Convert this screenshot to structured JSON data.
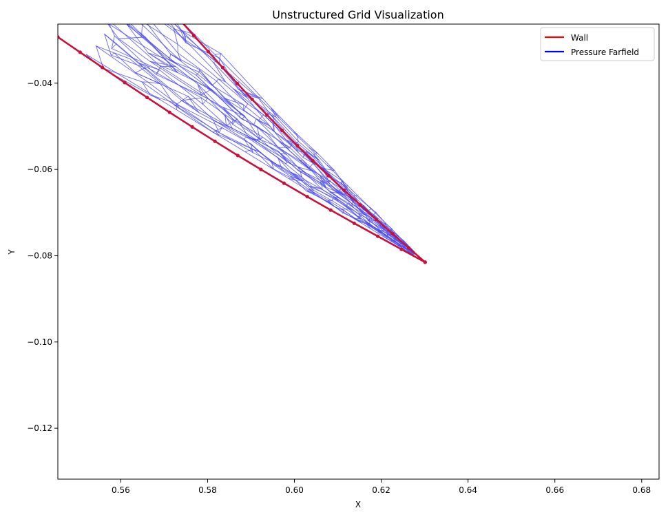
{
  "chart_data": {
    "type": "line",
    "title": "Unstructured Grid Visualization",
    "xlabel": "X",
    "ylabel": "Y",
    "xlim": [
      0.5455,
      0.684
    ],
    "ylim": [
      -0.1318,
      -0.0263
    ],
    "x_ticks": [
      0.56,
      0.58,
      0.6,
      0.62,
      0.64,
      0.66,
      0.68
    ],
    "y_ticks": [
      -0.12,
      -0.1,
      -0.08,
      -0.06,
      -0.04
    ],
    "x_tick_labels": [
      "0.56",
      "0.58",
      "0.60",
      "0.62",
      "0.64",
      "0.66",
      "0.68"
    ],
    "y_tick_labels": [
      "−0.12",
      "−0.10",
      "−0.08",
      "−0.06",
      "−0.04"
    ],
    "grid": false,
    "legend": {
      "placement": "top-right",
      "entries": [
        {
          "label": "Wall",
          "color": "#ff0000"
        },
        {
          "label": "Pressure Farfield",
          "color": "#0000ff"
        }
      ]
    },
    "wall": {
      "color": "#c8103a",
      "point_color": "#c8103a",
      "vertex": [
        0.6301,
        -0.0815
      ],
      "upper_ray_end": [
        0.5735,
        -0.0252
      ],
      "lower_ray_end": [
        0.5455,
        -0.0293
      ]
    },
    "farfield": {
      "color": "#4848ee",
      "ring_radii": [
        0.0033,
        0.0045,
        0.0058,
        0.0072,
        0.0088,
        0.0106,
        0.0128,
        0.0154,
        0.0184,
        0.0218,
        0.0258,
        0.0304,
        0.0356,
        0.0416,
        0.0486,
        0.0566,
        0.0656,
        0.076,
        0.088
      ],
      "spoke_count_outer": 30
    }
  }
}
